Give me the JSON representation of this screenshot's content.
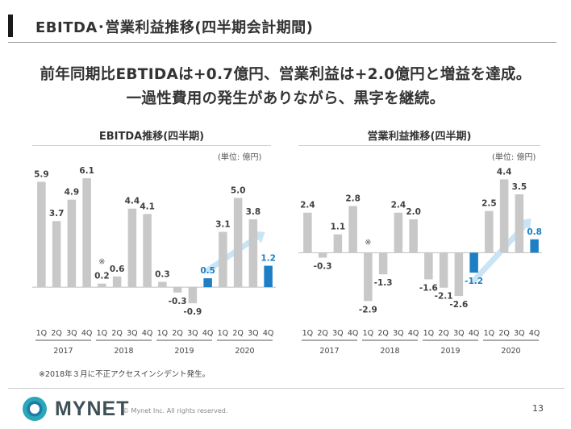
{
  "page": {
    "title": "EBITDA･営業利益推移(四半期会計期間)",
    "headline_1": "前年同期比EBTIDAは+0.7億円、営業利益は+2.0億円と増益を達成。",
    "headline_2": "一過性費用の発生がありながら、黒字を継続。",
    "footnote": "※2018年３月に不正アクセスインシデント発生。",
    "brand": "MYNET",
    "copyright": "© Mynet Inc. All rights reserved.",
    "page_number": "13",
    "colors": {
      "gray_bar": "#c8c8c8",
      "highlight_bar": "#1e7fc4",
      "arrow": "#c9e4f5",
      "logo_outer": "#2aa7b8",
      "logo_inner": "#1f7aa6"
    }
  },
  "chart_data": [
    {
      "type": "bar",
      "title": "EBITDA推移(四半期)",
      "unit": "(単位: 億円)",
      "categories": [
        "1Q",
        "2Q",
        "3Q",
        "4Q",
        "1Q",
        "2Q",
        "3Q",
        "4Q",
        "1Q",
        "2Q",
        "3Q",
        "4Q",
        "1Q",
        "2Q",
        "3Q",
        "4Q"
      ],
      "years": [
        "2017",
        "2018",
        "2019",
        "2020"
      ],
      "series": [
        {
          "values": [
            5.9,
            3.7,
            4.9,
            6.1,
            0.2,
            0.6,
            4.4,
            4.1,
            0.3,
            -0.3,
            -0.9,
            0.5,
            3.1,
            5.0,
            3.8,
            1.2
          ],
          "labels": [
            "5.9",
            "3.7",
            "4.9",
            "6.1",
            "0.2",
            "0.6",
            "4.4",
            "4.1",
            "0.3",
            "-0.3",
            "-0.9",
            "0.5",
            "3.1",
            "5.0",
            "3.8",
            "1.2"
          ]
        }
      ],
      "highlight_indices": [
        11,
        15
      ],
      "incident_marker": {
        "index": 4,
        "text": "※"
      },
      "ylim": [
        -1.8,
        6.6
      ]
    },
    {
      "type": "bar",
      "title": "営業利益推移(四半期)",
      "unit": "(単位: 億円)",
      "categories": [
        "1Q",
        "2Q",
        "3Q",
        "4Q",
        "1Q",
        "2Q",
        "3Q",
        "4Q",
        "1Q",
        "2Q",
        "3Q",
        "4Q",
        "1Q",
        "2Q",
        "3Q",
        "4Q"
      ],
      "years": [
        "2017",
        "2018",
        "2019",
        "2020"
      ],
      "series": [
        {
          "values": [
            2.4,
            -0.3,
            1.1,
            2.8,
            -2.9,
            -1.3,
            2.4,
            2.0,
            -1.6,
            -2.1,
            -2.6,
            -1.2,
            2.5,
            4.4,
            3.5,
            0.8
          ],
          "labels": [
            "2.4",
            "-0.3",
            "1.1",
            "2.8",
            "-2.9",
            "-1.3",
            "2.4",
            "2.0",
            "-1.6",
            "-2.1",
            "-2.6",
            "-1.2",
            "2.5",
            "4.4",
            "3.5",
            "0.8"
          ]
        }
      ],
      "highlight_indices": [
        11,
        15
      ],
      "incident_marker": {
        "index": 4,
        "text": "※"
      },
      "ylim": [
        -4.0,
        5.0
      ]
    }
  ]
}
